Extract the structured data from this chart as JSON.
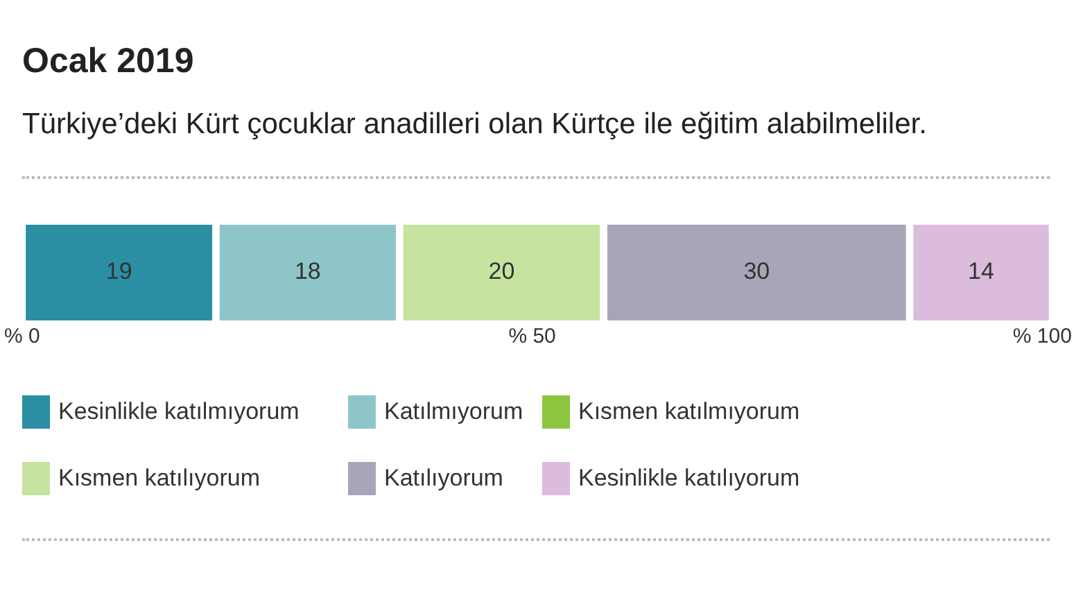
{
  "chart_data": {
    "type": "bar",
    "orientation": "horizontal",
    "stacked": true,
    "data_labels": true,
    "legend": "bottom",
    "grid": false,
    "title": "Ocak 2019",
    "subtitle": "Türkiye’deki Kürt çocuklar anadilleri olan Kürtçe ile eğitim alabilmeliler.",
    "categories": [
      null
    ],
    "xlim": [
      0,
      101
    ],
    "xticks": [
      {
        "value": 0,
        "label": "% 0"
      },
      {
        "value": 50,
        "label": "% 50"
      },
      {
        "value": 100,
        "label": "% 100"
      }
    ],
    "series": [
      {
        "name": "Kesinlikle katılmıyorum",
        "color": "#2a8fa3",
        "values": [
          19
        ]
      },
      {
        "name": "Katılmıyorum",
        "color": "#8ec5c8",
        "values": [
          18
        ]
      },
      {
        "name": "Kısmen katılmıyorum",
        "color": "#8dc63f",
        "values": [
          null
        ]
      },
      {
        "name": "Kısmen katılıyorum",
        "color": "#c6e3a0",
        "values": [
          20
        ]
      },
      {
        "name": "Katılıyorum",
        "color": "#a9a5b8",
        "values": [
          30
        ]
      },
      {
        "name": "Kesinlikle katılıyorum",
        "color": "#dbbcdd",
        "values": [
          14
        ]
      }
    ]
  }
}
